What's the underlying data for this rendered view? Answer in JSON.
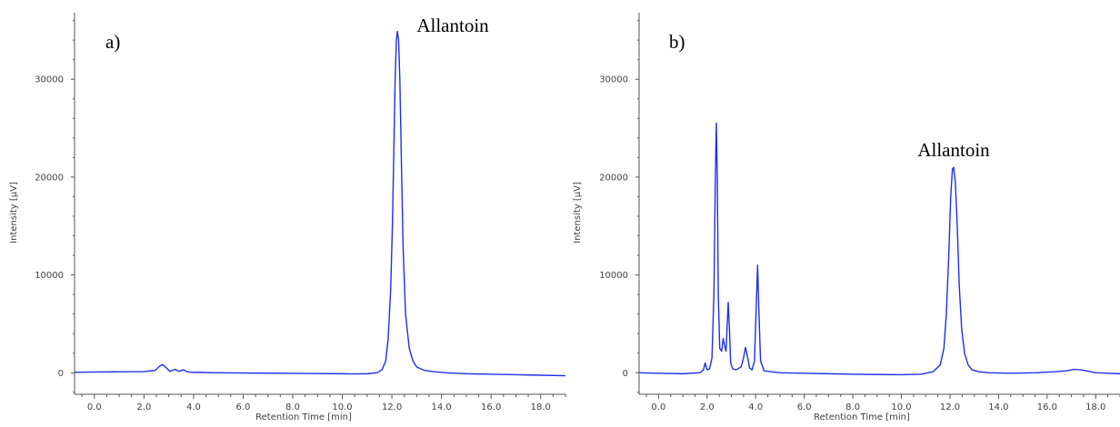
{
  "colors": {
    "trace": "#1f2fe6",
    "axis": "#555555"
  },
  "chart_data": [
    {
      "type": "line",
      "panel_label": "a)",
      "xlabel": "Retention Time [min]",
      "ylabel": "Intensity [µV]",
      "xlim": [
        -0.8,
        19.0
      ],
      "ylim": [
        -2200,
        36800
      ],
      "xticks": [
        0.0,
        2.0,
        4.0,
        6.0,
        8.0,
        10.0,
        12.0,
        14.0,
        16.0,
        18.0
      ],
      "xtick_labels": [
        "0.0",
        "2.0",
        "4.0",
        "6.0",
        "8.0",
        "10.0",
        "12.0",
        "14.0",
        "16.0",
        "18.0"
      ],
      "yticks": [
        0,
        10000,
        20000,
        30000
      ],
      "ytick_labels": [
        "0",
        "10000",
        "20000",
        "30000"
      ],
      "grid": false,
      "annotations": [
        {
          "text": "Allantoin",
          "x": 12.2,
          "y": 35000
        }
      ],
      "series": [
        {
          "x": [
            -0.8,
            0.0,
            1.0,
            2.0,
            2.45,
            2.6,
            2.75,
            2.9,
            3.05,
            3.25,
            3.4,
            3.6,
            3.75,
            3.9,
            4.2,
            5.0,
            6.0,
            7.0,
            8.0,
            9.0,
            10.0,
            10.5,
            11.0,
            11.4,
            11.6,
            11.75,
            11.85,
            11.95,
            12.02,
            12.08,
            12.13,
            12.18,
            12.22,
            12.27,
            12.32,
            12.38,
            12.45,
            12.55,
            12.7,
            12.85,
            13.0,
            13.3,
            13.7,
            14.2,
            15.0,
            16.0,
            17.0,
            18.0,
            19.0
          ],
          "y": [
            50,
            80,
            100,
            120,
            250,
            600,
            850,
            500,
            150,
            350,
            150,
            300,
            100,
            50,
            40,
            0,
            -20,
            -40,
            -60,
            -80,
            -100,
            -120,
            -100,
            0,
            300,
            1200,
            3500,
            8500,
            15000,
            23000,
            30000,
            34000,
            34900,
            34000,
            30000,
            22000,
            13000,
            6000,
            2500,
            1200,
            600,
            250,
            100,
            0,
            -100,
            -150,
            -200,
            -250,
            -300
          ]
        }
      ]
    },
    {
      "type": "line",
      "panel_label": "b)",
      "xlabel": "Retention Time [min]",
      "ylabel": "Intensity [µV]",
      "xlim": [
        -0.8,
        19.0
      ],
      "ylim": [
        -2200,
        36800
      ],
      "xticks": [
        0.0,
        2.0,
        4.0,
        6.0,
        8.0,
        10.0,
        12.0,
        14.0,
        16.0,
        18.0
      ],
      "xtick_labels": [
        "0.0",
        "2.0",
        "4.0",
        "6.0",
        "8.0",
        "10.0",
        "12.0",
        "14.0",
        "16.0",
        "18.0"
      ],
      "yticks": [
        0,
        10000,
        20000,
        30000
      ],
      "ytick_labels": [
        "0",
        "10000",
        "20000",
        "30000"
      ],
      "grid": false,
      "annotations": [
        {
          "text": "Allantoin",
          "x": 12.1,
          "y": 22000
        }
      ],
      "series": [
        {
          "x": [
            -0.8,
            0.0,
            1.0,
            1.7,
            1.85,
            1.92,
            2.0,
            2.1,
            2.2,
            2.28,
            2.34,
            2.38,
            2.42,
            2.46,
            2.52,
            2.6,
            2.66,
            2.72,
            2.78,
            2.82,
            2.87,
            2.92,
            2.97,
            3.05,
            3.2,
            3.4,
            3.5,
            3.58,
            3.65,
            3.75,
            3.85,
            3.95,
            4.02,
            4.08,
            4.13,
            4.2,
            4.35,
            5.0,
            6.0,
            7.0,
            8.0,
            9.0,
            10.0,
            10.8,
            11.3,
            11.6,
            11.75,
            11.85,
            11.95,
            12.03,
            12.1,
            12.15,
            12.22,
            12.3,
            12.38,
            12.48,
            12.6,
            12.75,
            12.9,
            13.2,
            13.6,
            14.5,
            15.5,
            16.3,
            16.8,
            17.1,
            17.4,
            17.7,
            18.0,
            18.5,
            19.0
          ],
          "y": [
            0,
            -50,
            -100,
            0,
            300,
            1000,
            300,
            400,
            1500,
            8000,
            20000,
            25500,
            20000,
            8000,
            2500,
            2200,
            3500,
            2800,
            2200,
            4500,
            7200,
            4500,
            1000,
            400,
            300,
            600,
            1500,
            2600,
            1800,
            500,
            300,
            1200,
            6500,
            11000,
            6500,
            1200,
            200,
            0,
            -50,
            -100,
            -150,
            -180,
            -200,
            -150,
            100,
            800,
            2500,
            6000,
            12000,
            18000,
            20800,
            21000,
            19500,
            15000,
            9000,
            4500,
            2000,
            800,
            300,
            100,
            0,
            -50,
            0,
            100,
            200,
            350,
            300,
            150,
            0,
            -50,
            -100
          ]
        }
      ]
    }
  ]
}
